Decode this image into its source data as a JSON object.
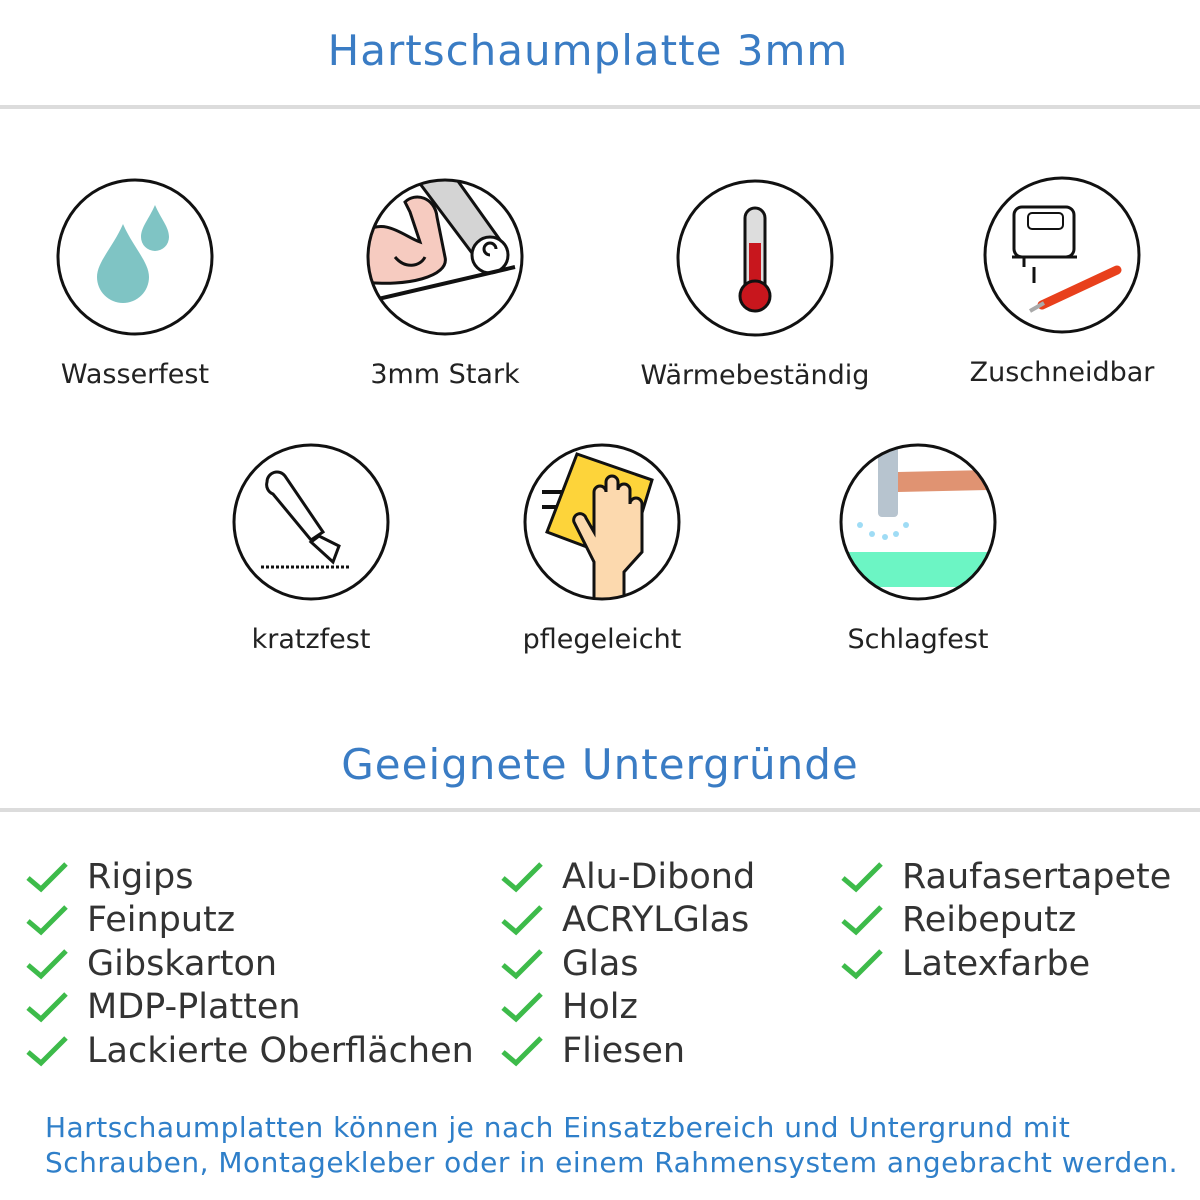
{
  "header": {
    "title": "Hartschaumplatte 3mm"
  },
  "features": [
    {
      "label": "Wasserfest",
      "icon": "water-drops-icon"
    },
    {
      "label": "3mm Stark",
      "icon": "strong-arm-icon"
    },
    {
      "label": "Wärmebeständig",
      "icon": "thermometer-icon"
    },
    {
      "label": "Zuschneidbar",
      "icon": "jigsaw-cutter-icon"
    },
    {
      "label": "kratzfest",
      "icon": "cutter-knife-icon"
    },
    {
      "label": "pflegeleicht",
      "icon": "cleaning-hand-icon"
    },
    {
      "label": "Schlagfest",
      "icon": "hammer-impact-icon"
    }
  ],
  "surfaces": {
    "title": "Geeignete Untergründe",
    "check_color": "#3dbb4a",
    "columns": [
      [
        "Rigips",
        "Feinputz",
        "Gibskarton",
        "MDP-Platten",
        "Lackierte Oberflächen"
      ],
      [
        "Alu-Dibond",
        "ACRYLGlas",
        "Glas",
        "Holz",
        "Fliesen"
      ],
      [
        "Raufasertapete",
        "Reibeputz",
        "Latexfarbe"
      ]
    ]
  },
  "footer": {
    "line1": "Hartschaumplatten können je nach Einsatzbereich und Untergrund mit",
    "line2": "Schrauben, Montagekleber oder in einem Rahmensystem angebracht werden."
  }
}
